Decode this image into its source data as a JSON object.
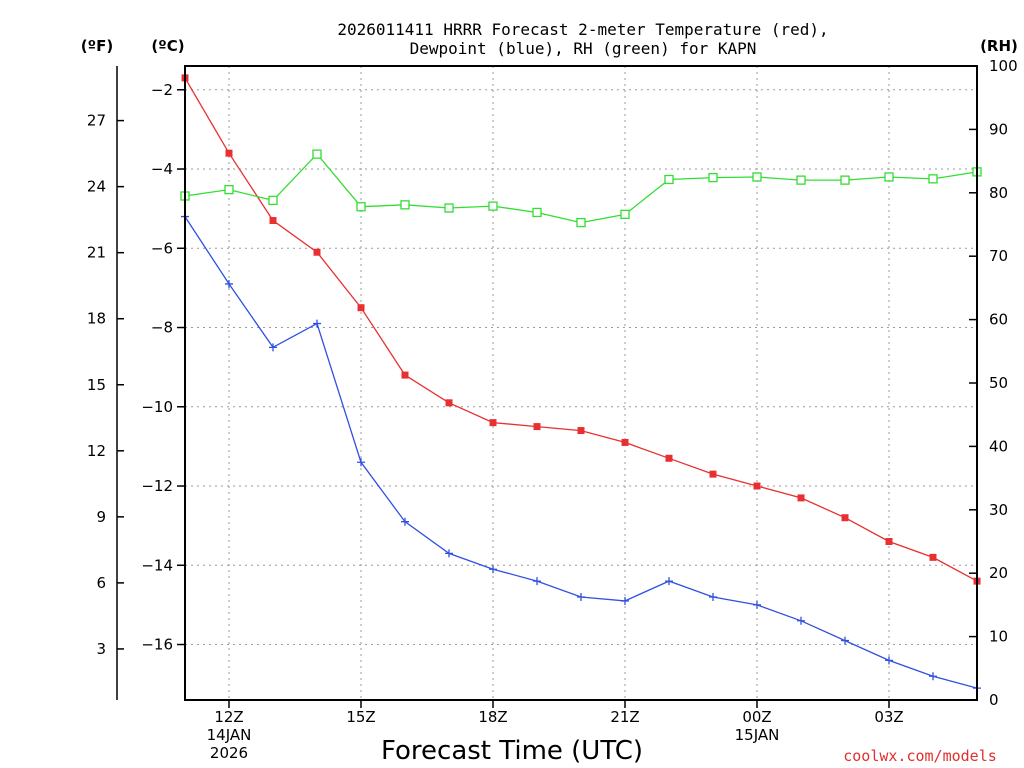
{
  "chart_data": {
    "type": "line",
    "title": "2026011411 HRRR Forecast 2-meter Temperature (red),",
    "subtitle": "Dewpoint (blue), RH (green) for KAPN",
    "station": "KAPN",
    "xlabel": "Forecast Time (UTC)",
    "credit": "coolwx.com/models",
    "units": {
      "fahrenheit": "(ºF)",
      "celsius": "(ºC)",
      "rh": "(RH)"
    },
    "x_hours": [
      0,
      1,
      2,
      3,
      4,
      5,
      6,
      7,
      8,
      9,
      10,
      11,
      12,
      13,
      14,
      15,
      16,
      17,
      18
    ],
    "x_ticks": [
      {
        "hour": 1,
        "lines": [
          "12Z",
          "14JAN",
          "2026"
        ]
      },
      {
        "hour": 4,
        "lines": [
          "15Z"
        ]
      },
      {
        "hour": 7,
        "lines": [
          "18Z"
        ]
      },
      {
        "hour": 10,
        "lines": [
          "21Z"
        ]
      },
      {
        "hour": 13,
        "lines": [
          "00Z",
          "15JAN"
        ]
      },
      {
        "hour": 16,
        "lines": [
          "03Z"
        ]
      }
    ],
    "celsius_axis": {
      "range": [
        -17.4,
        -1.4
      ],
      "ticks": [
        -2,
        -4,
        -6,
        -8,
        -10,
        -12,
        -14,
        -16
      ]
    },
    "fahrenheit_axis": {
      "ticks": [
        3,
        6,
        9,
        12,
        15,
        18,
        21,
        24,
        27
      ]
    },
    "rh_axis": {
      "range": [
        0,
        100
      ],
      "ticks": [
        0,
        10,
        20,
        30,
        40,
        50,
        60,
        70,
        80,
        90,
        100
      ]
    },
    "series": [
      {
        "name": "2-meter Temperature",
        "unit": "C",
        "color": "#e83030",
        "marker": "filled-square",
        "values": [
          -1.7,
          -3.6,
          -5.3,
          -6.1,
          -7.5,
          -9.2,
          -9.9,
          -10.4,
          -10.5,
          -10.6,
          -10.9,
          -11.3,
          -11.7,
          -12.0,
          -12.3,
          -12.8,
          -13.4,
          -13.8,
          -14.4
        ]
      },
      {
        "name": "Dewpoint",
        "unit": "C",
        "color": "#3050e0",
        "marker": "plus",
        "values": [
          -5.2,
          -6.9,
          -8.5,
          -7.9,
          -11.4,
          -12.9,
          -13.7,
          -14.1,
          -14.4,
          -14.8,
          -14.9,
          -14.4,
          -14.8,
          -15.0,
          -15.4,
          -15.9,
          -16.4,
          -16.8,
          -17.1
        ]
      },
      {
        "name": "Relative Humidity",
        "unit": "%",
        "color": "#33dd33",
        "marker": "open-square",
        "values": [
          79.5,
          80.5,
          78.8,
          86.1,
          77.8,
          78.1,
          77.6,
          77.9,
          76.9,
          75.3,
          76.6,
          82.1,
          82.4,
          82.5,
          82.0,
          82.0,
          82.5,
          82.2,
          83.3
        ]
      }
    ]
  }
}
